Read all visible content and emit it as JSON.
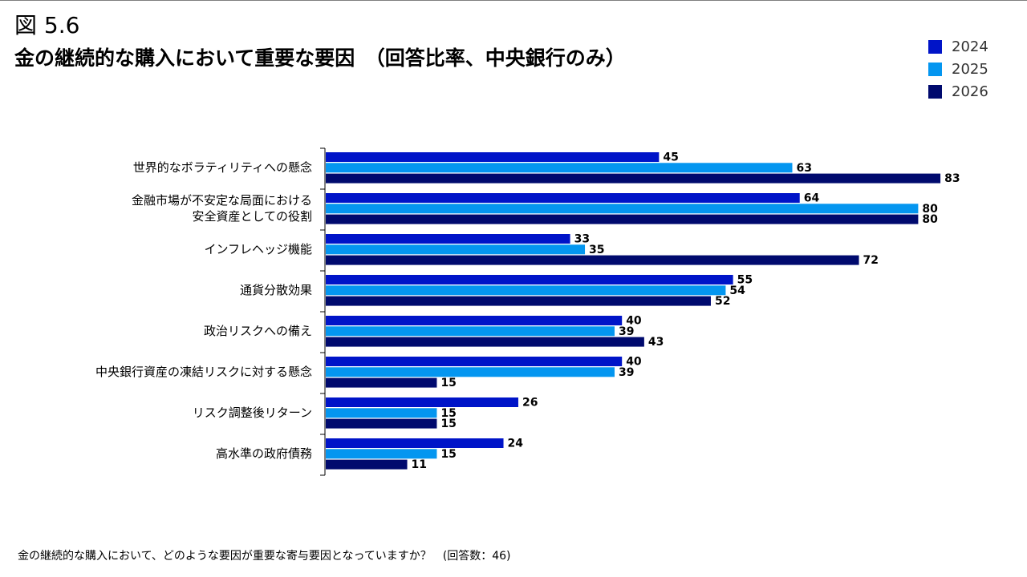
{
  "figure_label": "図 5.6",
  "title": "金の継続的な購入において重要な要因　（回答比率、中央銀行のみ）",
  "footnote": "金の継続的な購入において、どのような要因が重要な寄与要因となっていますか？　(回答数：46)",
  "chart_data": {
    "type": "bar",
    "orientation": "horizontal",
    "categories": [
      [
        "世界的なボラティリティへの懸念"
      ],
      [
        "金融市場が不安定な局面における",
        "安全資産としての役割"
      ],
      [
        "インフレヘッジ機能"
      ],
      [
        "通貨分散効果"
      ],
      [
        "政治リスクへの備え"
      ],
      [
        "中央銀行資産の凍結リスクに対する懸念"
      ],
      [
        "リスク調整後リターン"
      ],
      [
        "高水準の政府債務"
      ]
    ],
    "series": [
      {
        "name": "2024",
        "color": "#0014c8",
        "values": [
          45,
          64,
          33,
          55,
          40,
          40,
          26,
          24
        ]
      },
      {
        "name": "2025",
        "color": "#0496f0",
        "values": [
          63,
          80,
          35,
          54,
          39,
          39,
          15,
          15
        ]
      },
      {
        "name": "2026",
        "color": "#000a6e",
        "values": [
          83,
          80,
          72,
          52,
          43,
          15,
          15,
          11
        ]
      }
    ],
    "xlim": [
      0,
      100
    ],
    "legend_position": "top-right",
    "grid": false
  }
}
